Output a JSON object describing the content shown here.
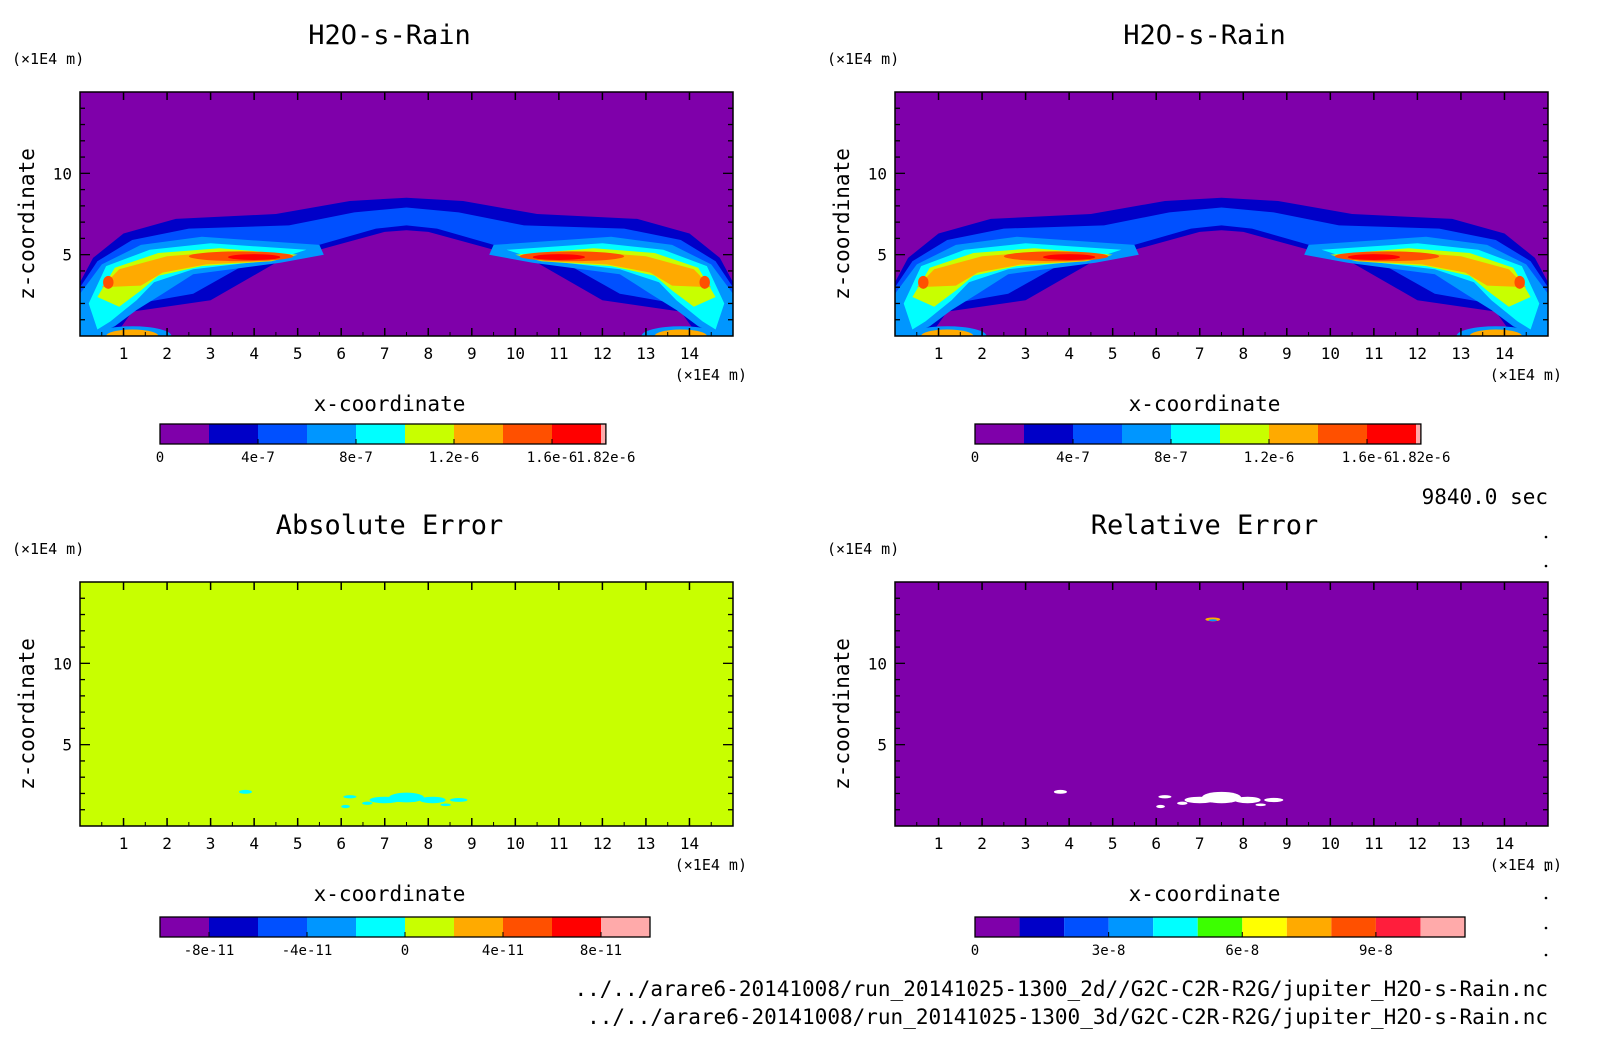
{
  "time_label": "9840.0 sec",
  "footer_lines": [
    "../../arare6-20141008/run_20141025-1300_2d//G2C-C2R-R2G/jupiter_H2O-s-Rain.nc",
    "../../arare6-20141008/run_20141025-1300_3d/G2C-C2R-R2G/jupiter_H2O-s-Rain.nc"
  ],
  "colors": {
    "purple": "#7f00aa",
    "navy": "#0000c8",
    "blue": "#0050ff",
    "lightblue": "#0096ff",
    "cyan": "#00ffff",
    "yellowgreen": "#c8ff00",
    "green": "#3cff00",
    "yellow": "#ffff00",
    "orange": "#ffaa00",
    "redorange": "#ff5000",
    "red": "#ff0000",
    "crimson": "#ff1e3c",
    "pink": "#ffaaaa",
    "white": "#ffffff"
  },
  "chart_data": [
    {
      "type": "heatmap",
      "title": "H2O-s-Rain",
      "xlabel": "x-coordinate",
      "ylabel": "z-coordinate",
      "x_unit": "(×1E4 m)",
      "y_unit": "(×1E4 m)",
      "xlim": [
        0,
        15
      ],
      "ylim": [
        0,
        15
      ],
      "x_ticks": [
        "1",
        "2",
        "3",
        "4",
        "5",
        "6",
        "7",
        "8",
        "9",
        "10",
        "11",
        "12",
        "13",
        "14"
      ],
      "y_ticks": [
        "5",
        "10"
      ],
      "background": "purple",
      "colorbar": {
        "colors": [
          "purple",
          "navy",
          "blue",
          "lightblue",
          "cyan",
          "yellowgreen",
          "orange",
          "redorange",
          "red",
          "pink"
        ],
        "tick_labels": [
          "0",
          "4e-7",
          "8e-7",
          "1.2e-6",
          "1.6e-6",
          "1.82e-6"
        ],
        "range": [
          0,
          1.82e-06
        ]
      },
      "features": "rain layer arch from z≈8.5 at x≈7.5 down to z≈5 at x≈1 and x≈14, maxima (~1.6e-6) near z≈5 at x≈4 and x≈11, columns reaching ground at x≈0.5 and x≈14.5"
    },
    {
      "type": "heatmap",
      "title": "H2O-s-Rain",
      "xlabel": "x-coordinate",
      "ylabel": "z-coordinate",
      "x_unit": "(×1E4 m)",
      "y_unit": "(×1E4 m)",
      "xlim": [
        0,
        15
      ],
      "ylim": [
        0,
        15
      ],
      "x_ticks": [
        "1",
        "2",
        "3",
        "4",
        "5",
        "6",
        "7",
        "8",
        "9",
        "10",
        "11",
        "12",
        "13",
        "14"
      ],
      "y_ticks": [
        "5",
        "10"
      ],
      "background": "purple",
      "colorbar": {
        "colors": [
          "purple",
          "navy",
          "blue",
          "lightblue",
          "cyan",
          "yellowgreen",
          "orange",
          "redorange",
          "red",
          "pink"
        ],
        "tick_labels": [
          "0",
          "4e-7",
          "8e-7",
          "1.2e-6",
          "1.6e-6",
          "1.82e-6"
        ],
        "range": [
          0,
          1.82e-06
        ]
      },
      "features": "identical to left panel"
    },
    {
      "type": "heatmap",
      "title": "Absolute Error",
      "xlabel": "x-coordinate",
      "ylabel": "z-coordinate",
      "x_unit": "(×1E4 m)",
      "y_unit": "(×1E4 m)",
      "xlim": [
        0,
        15
      ],
      "ylim": [
        0,
        15
      ],
      "x_ticks": [
        "1",
        "2",
        "3",
        "4",
        "5",
        "6",
        "7",
        "8",
        "9",
        "10",
        "11",
        "12",
        "13",
        "14"
      ],
      "y_ticks": [
        "5",
        "10"
      ],
      "background": "yellowgreen",
      "colorbar": {
        "colors": [
          "purple",
          "navy",
          "blue",
          "lightblue",
          "cyan",
          "yellowgreen",
          "orange",
          "redorange",
          "red",
          "pink"
        ],
        "tick_labels": [
          "-8e-11",
          "-4e-11",
          "0",
          "4e-11",
          "8e-11"
        ],
        "range": [
          -1e-10,
          1e-10
        ]
      },
      "features": "uniform 0 field with small negative (cyan) patches near z≈2 around x≈3.8 and x≈6–9"
    },
    {
      "type": "heatmap",
      "title": "Relative Error",
      "xlabel": "x-coordinate",
      "ylabel": "z-coordinate",
      "x_unit": "(×1E4 m)",
      "y_unit": "(×1E4 m)",
      "xlim": [
        0,
        15
      ],
      "ylim": [
        0,
        15
      ],
      "x_ticks": [
        "1",
        "2",
        "3",
        "4",
        "5",
        "6",
        "7",
        "8",
        "9",
        "10",
        "11",
        "12",
        "13",
        "14"
      ],
      "y_ticks": [
        "5",
        "10"
      ],
      "background": "purple",
      "colorbar": {
        "colors": [
          "purple",
          "navy",
          "blue",
          "lightblue",
          "cyan",
          "green",
          "yellow",
          "orange",
          "redorange",
          "crimson",
          "pink"
        ],
        "tick_labels": [
          "0",
          "3e-8",
          "6e-8",
          "9e-8"
        ],
        "range": [
          0,
          1.1e-07
        ]
      },
      "features": "uniform 0 field; small spot near x≈7.3, z≈12.7; white (undefined) patches near z≈2 around x≈3.8 and x≈6–9"
    }
  ]
}
